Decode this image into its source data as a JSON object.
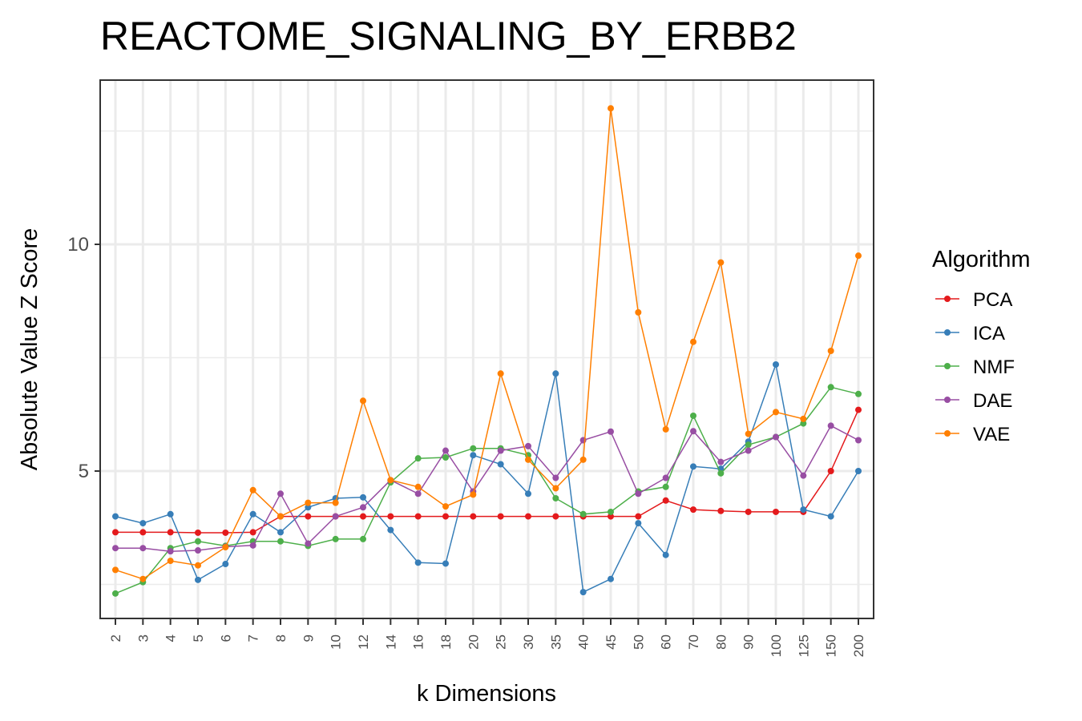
{
  "chart_data": {
    "type": "line",
    "title": "REACTOME_SIGNALING_BY_ERBB2",
    "xlabel": "k Dimensions",
    "ylabel": "Absolute Value Z Score",
    "categories": [
      "2",
      "3",
      "4",
      "5",
      "6",
      "7",
      "8",
      "9",
      "10",
      "12",
      "14",
      "16",
      "18",
      "20",
      "25",
      "30",
      "35",
      "40",
      "45",
      "50",
      "60",
      "70",
      "80",
      "90",
      "100",
      "125",
      "150",
      "200"
    ],
    "yticks": [
      5,
      10
    ],
    "ylim": [
      1.8,
      13.2
    ],
    "grid": true,
    "legend": {
      "title": "Algorithm",
      "position": "right"
    },
    "series": [
      {
        "name": "PCA",
        "color": "#e41a1c",
        "values": [
          3.65,
          3.65,
          3.65,
          3.64,
          3.64,
          3.65,
          4.0,
          4.0,
          4.0,
          4.0,
          4.0,
          4.0,
          4.0,
          4.0,
          4.0,
          4.0,
          4.0,
          4.0,
          4.0,
          4.0,
          4.35,
          4.15,
          4.12,
          4.1,
          4.1,
          4.1,
          5.0,
          6.35
        ]
      },
      {
        "name": "ICA",
        "color": "#377eb8",
        "values": [
          4.0,
          3.85,
          4.05,
          2.6,
          2.95,
          4.05,
          3.65,
          4.2,
          4.4,
          4.42,
          3.7,
          2.98,
          2.96,
          5.35,
          5.15,
          4.5,
          7.15,
          2.33,
          2.62,
          3.85,
          3.15,
          5.1,
          5.05,
          5.65,
          7.35,
          4.15,
          4.0,
          5.0
        ]
      },
      {
        "name": "NMF",
        "color": "#4daf4a",
        "values": [
          2.3,
          2.55,
          3.3,
          3.45,
          3.35,
          3.45,
          3.45,
          3.35,
          3.5,
          3.5,
          4.75,
          5.28,
          5.3,
          5.5,
          5.5,
          5.35,
          4.4,
          4.05,
          4.1,
          4.55,
          4.65,
          6.22,
          4.95,
          5.58,
          5.75,
          6.05,
          6.85,
          6.7
        ]
      },
      {
        "name": "DAE",
        "color": "#984ea3",
        "values": [
          3.3,
          3.3,
          3.23,
          3.25,
          3.33,
          3.36,
          4.5,
          3.4,
          4.0,
          4.2,
          4.8,
          4.5,
          5.45,
          4.55,
          5.45,
          5.55,
          4.85,
          5.68,
          5.87,
          4.5,
          4.85,
          5.88,
          5.2,
          5.45,
          5.75,
          4.9,
          6.0,
          5.68
        ]
      },
      {
        "name": "VAE",
        "color": "#ff7f00",
        "values": [
          2.82,
          2.62,
          3.02,
          2.92,
          3.32,
          4.58,
          4.0,
          4.3,
          4.3,
          6.55,
          4.8,
          4.65,
          4.22,
          4.48,
          7.15,
          5.25,
          4.62,
          5.25,
          13.0,
          8.5,
          5.92,
          7.85,
          9.6,
          5.82,
          6.3,
          6.15,
          7.65,
          9.75
        ]
      }
    ]
  }
}
